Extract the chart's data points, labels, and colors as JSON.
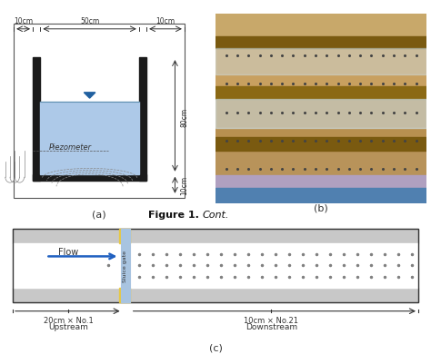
{
  "figure_title_bold": "Figure 1. ",
  "figure_title_italic": "Cont.",
  "panel_a_label": "(a)",
  "panel_b_label": "(b)",
  "panel_c_label": "(c)",
  "top_dim_50cm": "50cm",
  "top_dim_10cm_left": "10cm",
  "top_dim_10cm_right": "10cm",
  "right_dim_80cm": "80cm",
  "right_dim_10cm": "10cm",
  "piezometer_label": "Piezometer",
  "flow_label": "Flow",
  "sluice_gate_label": "Sluice gate",
  "upstream_label": "Upstream",
  "downstream_label": "Downstream",
  "upstream_dim": "20cm × No.1",
  "downstream_dim": "10cm × No.21",
  "water_color": "#adc9e8",
  "gate_color": "#a8c4e0",
  "wall_color": "#1a1a1a",
  "bg_color": "#ffffff",
  "gray_band_color": "#c8c8c8",
  "yellow_bracket_color": "#e8c840",
  "flow_arrow_color": "#2060c0",
  "dot_color": "#808080",
  "dim_line_color": "#333333"
}
